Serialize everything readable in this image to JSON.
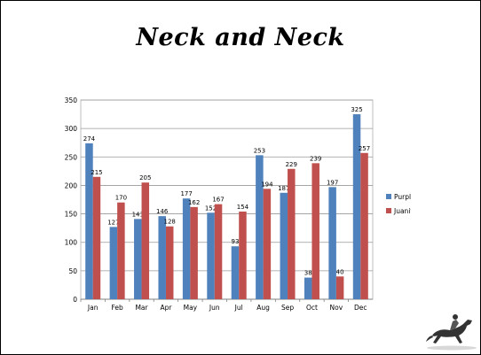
{
  "slide": {
    "title": "Neck and Neck"
  },
  "chart_data": {
    "type": "bar",
    "title": "",
    "xlabel": "",
    "ylabel": "",
    "categories": [
      "Jan",
      "Feb",
      "Mar",
      "Apr",
      "May",
      "Jun",
      "Jul",
      "Aug",
      "Sep",
      "Oct",
      "Nov",
      "Dec"
    ],
    "series": [
      {
        "name": "Purple",
        "color": "#4f81bd",
        "values": [
          274,
          127,
          141,
          146,
          177,
          152,
          93,
          253,
          187,
          38,
          197,
          325
        ]
      },
      {
        "name": "Juanita",
        "color": "#c0504d",
        "values": [
          215,
          170,
          205,
          128,
          162,
          167,
          154,
          194,
          229,
          239,
          40,
          257
        ]
      }
    ],
    "ylim": [
      0,
      350
    ],
    "yticks": [
      0,
      50,
      100,
      150,
      200,
      250,
      300,
      350
    ],
    "grid": true,
    "legend_position": "right",
    "data_labels": true
  },
  "decoration": {
    "icon": "horse-and-jockey-icon"
  }
}
